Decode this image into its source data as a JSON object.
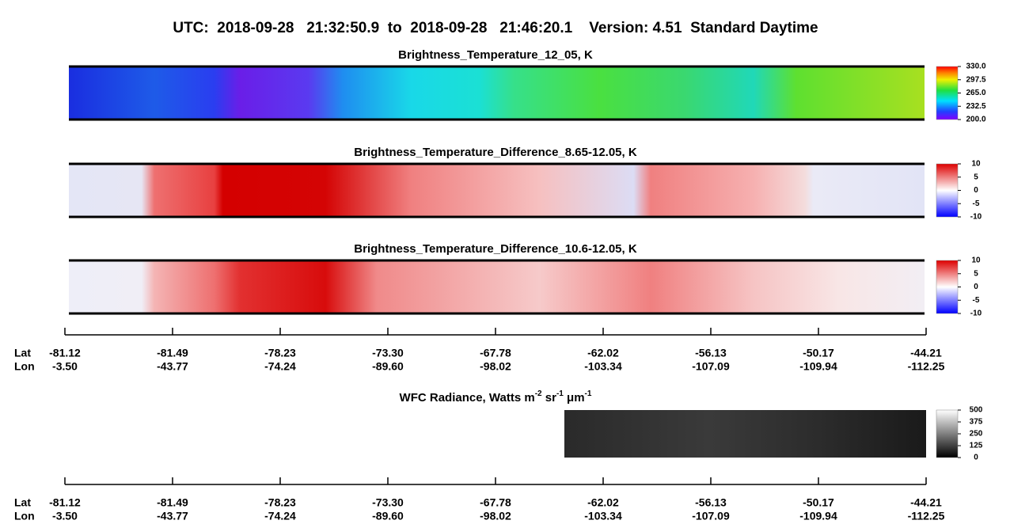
{
  "title": "UTC:  2018-09-28   21:32:50.9  to  2018-09-28   21:46:20.1    Version: 4.51  Standard Daytime",
  "panels": [
    {
      "title": "Brightness_Temperature_12_05, K",
      "palette": "rainbow",
      "colorbar": {
        "lim": [
          200,
          330
        ],
        "ticks": [
          {
            "value": 330,
            "label": "330.0"
          },
          {
            "value": 297.5,
            "label": "297.5"
          },
          {
            "value": 265,
            "label": "265.0"
          },
          {
            "value": 232.5,
            "label": "232.5"
          },
          {
            "value": 200,
            "label": "200.0"
          }
        ]
      }
    },
    {
      "title": "Brightness_Temperature_Difference_8.65-12.05, K",
      "palette": "diff1",
      "colorbar": {
        "lim": [
          -10,
          10
        ],
        "ticks": [
          10,
          5,
          0,
          -5,
          -10
        ]
      }
    },
    {
      "title": "Brightness_Temperature_Difference_10.6-12.05, K",
      "palette": "diff2",
      "colorbar": {
        "lim": [
          -10,
          10
        ],
        "ticks": [
          10,
          5,
          0,
          -5,
          -10
        ]
      }
    }
  ],
  "wfc": {
    "title_parts": [
      {
        "text": "WFC Radiance, Watts m"
      },
      {
        "text": "-2",
        "sup": true
      },
      {
        "text": " sr"
      },
      {
        "text": "-1",
        "sup": true
      },
      {
        "text": " μm"
      },
      {
        "text": "-1",
        "sup": true
      }
    ],
    "colorbar": {
      "lim": [
        0,
        500
      ],
      "ticks": [
        500,
        375,
        250,
        125,
        0
      ]
    }
  },
  "axes": [
    {
      "lat_label": "Lat",
      "lon_label": "Lon",
      "lat": [
        "-81.12",
        "-81.49",
        "-78.23",
        "-73.30",
        "-67.78",
        "-62.02",
        "-56.13",
        "-50.17",
        "-44.21"
      ],
      "lon": [
        "-3.50",
        "-43.77",
        "-74.24",
        "-89.60",
        "-98.02",
        "-103.34",
        "-107.09",
        "-109.94",
        "-112.25"
      ]
    },
    {
      "lat_label": "Lat",
      "lon_label": "Lon",
      "lat": [
        "-81.12",
        "-81.49",
        "-78.23",
        "-73.30",
        "-67.78",
        "-62.02",
        "-56.13",
        "-50.17",
        "-44.21"
      ],
      "lon": [
        "-3.50",
        "-43.77",
        "-74.24",
        "-89.60",
        "-98.02",
        "-103.34",
        "-107.09",
        "-109.94",
        "-112.25"
      ]
    }
  ]
}
